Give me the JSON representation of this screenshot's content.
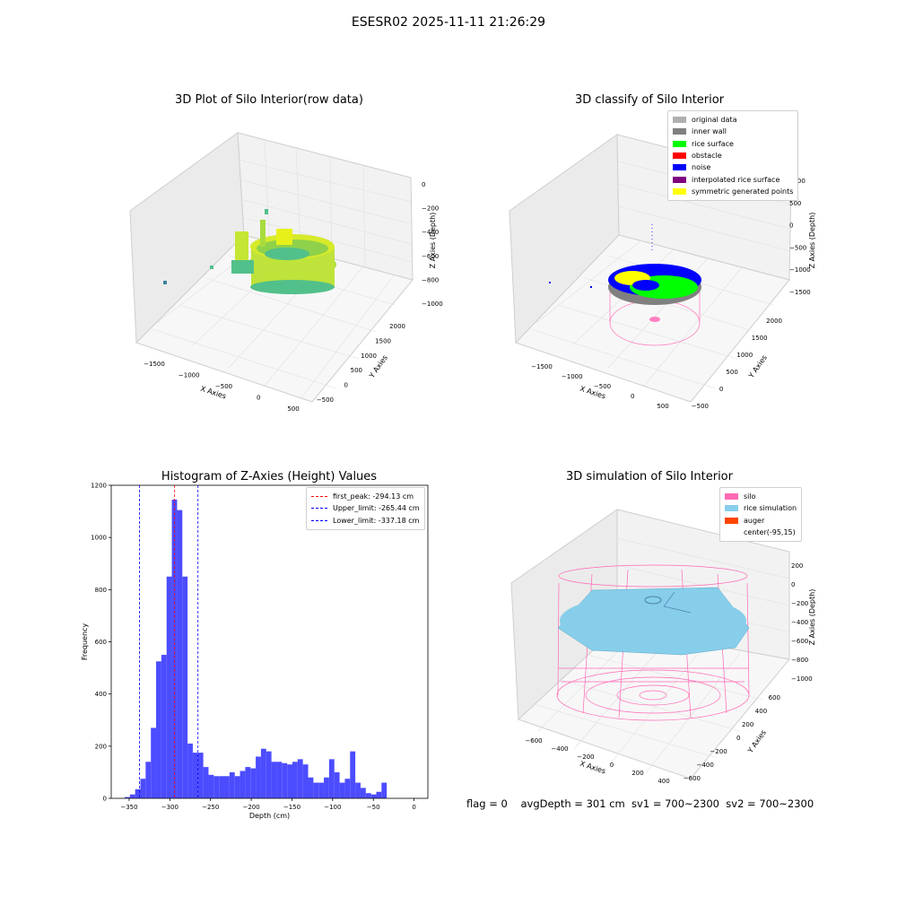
{
  "suptitle": "ESESR02 2025-11-11 21:26:29",
  "bottom_info": "flag = 0    avgDepth = 301 cm  sv1 = 700~2300  sv2 = 700~2300",
  "chart_data": [
    {
      "type": "scatter",
      "title": "3D Plot of Silo Interior(row data)",
      "xlabel": "X Axies",
      "ylabel": "Y Axies",
      "zlabel": "Z Axies (Depth)",
      "x_ticks": [
        "−1500",
        "−1000",
        "−500",
        "0",
        "500"
      ],
      "y_ticks": [
        "−500",
        "0",
        "500",
        "1000",
        "1500",
        "2000"
      ],
      "z_ticks": [
        "0",
        "−200",
        "−400",
        "−600",
        "−800",
        "−1000"
      ],
      "colormap": [
        "#3b9fa0",
        "#52c08a",
        "#a8dc3c",
        "#e8f01a"
      ]
    },
    {
      "type": "scatter",
      "title": "3D classify of Silo Interior",
      "xlabel": "X Axies",
      "ylabel": "Y Axies",
      "zlabel": "Z Axies (Depth)",
      "x_ticks": [
        "−1500",
        "−1000",
        "−500",
        "0",
        "500"
      ],
      "y_ticks": [
        "−500",
        "0",
        "500",
        "1000",
        "1500",
        "2000"
      ],
      "z_ticks": [
        "1000",
        "500",
        "0",
        "−500",
        "−1000",
        "−1500"
      ],
      "legend": [
        {
          "label": "original data",
          "color": "#b0b0b0"
        },
        {
          "label": "inner wall",
          "color": "#808080"
        },
        {
          "label": "rice surface",
          "color": "#00ff00"
        },
        {
          "label": "obstacle",
          "color": "#ff0000"
        },
        {
          "label": "noise",
          "color": "#0000ff"
        },
        {
          "label": "interpolated rice surface",
          "color": "#800080"
        },
        {
          "label": "symmetric generated points",
          "color": "#ffff00"
        }
      ]
    },
    {
      "type": "bar",
      "title": "Histogram of Z-Axies (Height) Values",
      "xlabel": "Depth (cm)",
      "ylabel": "Frequency",
      "xlim": [
        -372,
        17
      ],
      "ylim": [
        0,
        1200
      ],
      "x_ticks": [
        -350,
        -300,
        -250,
        -200,
        -150,
        -100,
        -50,
        0
      ],
      "y_ticks": [
        0,
        200,
        400,
        600,
        800,
        1000,
        1200
      ],
      "bin_start": -355.5,
      "bin_width": 6.44,
      "values": [
        5,
        15,
        35,
        75,
        140,
        270,
        525,
        550,
        850,
        1145,
        1105,
        850,
        210,
        175,
        175,
        120,
        90,
        85,
        85,
        85,
        100,
        85,
        105,
        120,
        115,
        160,
        190,
        180,
        140,
        140,
        135,
        130,
        140,
        150,
        130,
        80,
        60,
        60,
        80,
        150,
        100,
        60,
        75,
        180,
        60,
        40,
        20,
        15,
        25,
        60
      ],
      "bar_color": "#4c4cff",
      "lines": [
        {
          "label": "first_peak: -294.13 cm",
          "x": -294.13,
          "color": "#ff0000"
        },
        {
          "label": "Upper_limit: -265.44 cm",
          "x": -265.44,
          "color": "#0000ff"
        },
        {
          "label": "Lower_limit: -337.18 cm",
          "x": -337.18,
          "color": "#0000ff"
        }
      ]
    },
    {
      "type": "scatter",
      "title": "3D simulation of Silo Interior",
      "xlabel": "X Axies",
      "ylabel": "Y Axies",
      "zlabel": "Z Axies (Depth)",
      "x_ticks": [
        "−600",
        "−400",
        "−200",
        "0",
        "200",
        "400"
      ],
      "y_ticks": [
        "−600",
        "−400",
        "−200",
        "0",
        "200",
        "400",
        "600"
      ],
      "z_ticks": [
        "200",
        "0",
        "−200",
        "−400",
        "−600",
        "−800",
        "−1000"
      ],
      "legend": [
        {
          "label": "silo",
          "color": "#ff69b4"
        },
        {
          "label": "rice simulation",
          "color": "#87ceeb"
        },
        {
          "label": "auger",
          "color": "#ff4500"
        },
        {
          "label": "center(-95,15)",
          "color": ""
        }
      ]
    }
  ]
}
